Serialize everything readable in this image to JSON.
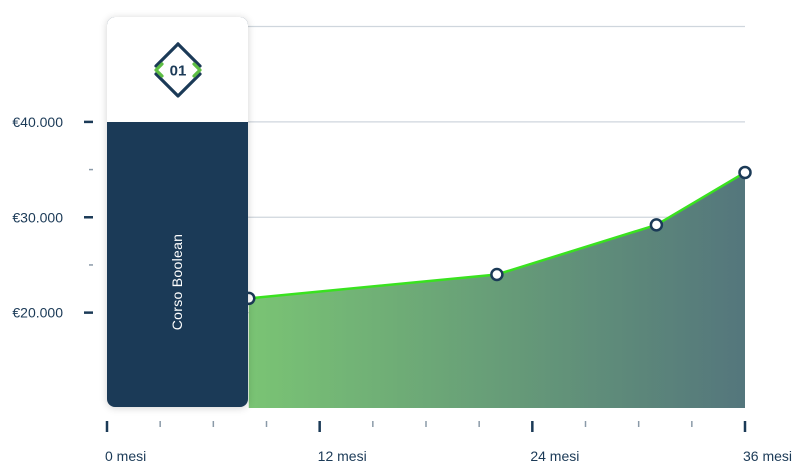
{
  "chart_data": {
    "type": "area",
    "title": "",
    "xlabel": "",
    "ylabel": "",
    "x_ticks": [
      {
        "value": 0,
        "label": "0 mesi"
      },
      {
        "value": 12,
        "label": "12 mesi"
      },
      {
        "value": 24,
        "label": "24 mesi"
      },
      {
        "value": 36,
        "label": "36 mesi"
      }
    ],
    "y_ticks": [
      {
        "value": 20000,
        "label": "€20.000"
      },
      {
        "value": 30000,
        "label": "€30.000"
      },
      {
        "value": 40000,
        "label": "€40.000"
      }
    ],
    "xlim": [
      0,
      36
    ],
    "ylim": [
      10000,
      51000
    ],
    "series": [
      {
        "x": [
          8,
          22,
          31,
          36
        ],
        "values": [
          21500,
          24000,
          29200,
          34700
        ]
      }
    ],
    "grid": true,
    "legend": "none"
  },
  "course_card": {
    "label": "Corso Boolean",
    "logo_text": "01"
  },
  "colors": {
    "line": "#39e21f",
    "area_start": "#7ac474",
    "area_end": "#54767c",
    "marker_stroke": "#1b3a57",
    "card": "#1b3a57",
    "logo_accent": "#5fbf45",
    "axis": "#1b3a57",
    "grid": "#cfd6dd"
  }
}
